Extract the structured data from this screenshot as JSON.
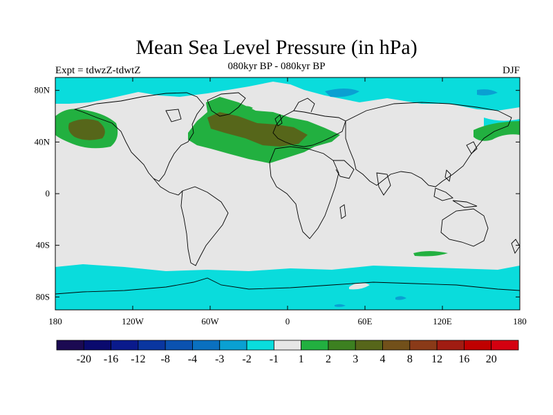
{
  "title": "Mean Sea Level Pressure (in hPa)",
  "subtitle": "080kyr BP - 080kyr BP",
  "experiment": "Expt = tdwzZ-tdwtZ",
  "season": "DJF",
  "map": {
    "lon_ticks": [
      "180",
      "120W",
      "60W",
      "0",
      "60E",
      "120E",
      "180"
    ],
    "lat_ticks": [
      "80N",
      "40N",
      "0",
      "40S",
      "80S"
    ],
    "lon_tick_values": [
      -180,
      -120,
      -60,
      0,
      60,
      120,
      180
    ],
    "lat_tick_values": [
      80,
      40,
      0,
      -40,
      -80
    ],
    "lon_range": [
      -180,
      180
    ],
    "lat_range": [
      -90,
      90
    ],
    "background_color": "#e6e6e6"
  },
  "colorbar": {
    "labels": [
      "-20",
      "-16",
      "-12",
      "-8",
      "-4",
      "-3",
      "-2",
      "-1",
      "1",
      "2",
      "3",
      "4",
      "8",
      "12",
      "16",
      "20"
    ],
    "colors": [
      "#1b0a52",
      "#0a0a6e",
      "#0a1a8c",
      "#0a36a0",
      "#0b52b0",
      "#0a70c0",
      "#0aa0d2",
      "#0adcdc",
      "#e6e6e6",
      "#22b040",
      "#3c8020",
      "#56661a",
      "#72501a",
      "#8a3a18",
      "#a01c12",
      "#c00000",
      "#d40010"
    ]
  },
  "regions": [
    {
      "name": "arctic-cyan-band",
      "color": "#0adcdc"
    },
    {
      "name": "arctic-blue-patch",
      "color": "#0aa0d2"
    },
    {
      "name": "southern-ocean-cyan-band",
      "color": "#0adcdc"
    },
    {
      "name": "north-atlantic-green",
      "color": "#22b040"
    },
    {
      "name": "north-atlantic-brown",
      "color": "#56661a"
    },
    {
      "name": "north-pacific-green",
      "color": "#22b040"
    },
    {
      "name": "north-pacific-brown",
      "color": "#56661a"
    },
    {
      "name": "south-indian-green",
      "color": "#22b040"
    }
  ]
}
